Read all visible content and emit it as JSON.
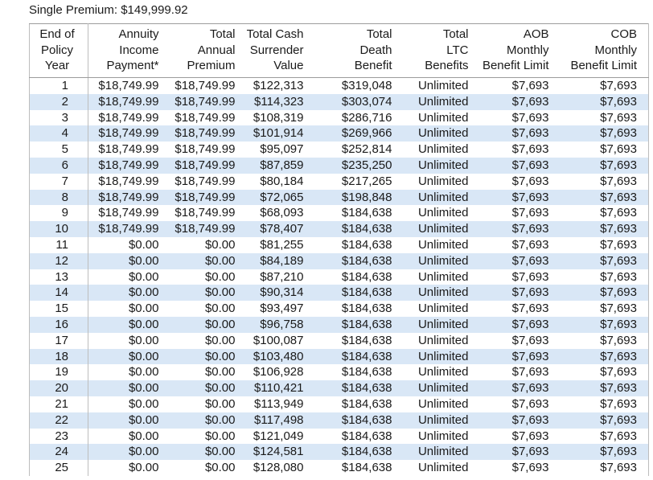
{
  "title": "Single Premium: $149,999.92",
  "colors": {
    "row_stripe": "#d9e7f6",
    "border_horizontal": "#9c9c9c",
    "border_vertical": "#bdbdbd",
    "text": "#1a1a1a"
  },
  "table": {
    "columns": [
      {
        "id": "end-of-policy-year",
        "label": "End of\nPolicy\nYear"
      },
      {
        "id": "annuity-income-payment",
        "label": "Annuity\nIncome\nPayment*"
      },
      {
        "id": "total-annual-premium",
        "label": "Total\nAnnual\nPremium"
      },
      {
        "id": "total-cash-surrender-value",
        "label": "Total Cash\nSurrender\nValue"
      },
      {
        "id": "total-death-benefit",
        "label": "Total\nDeath\nBenefit"
      },
      {
        "id": "total-ltc-benefits",
        "label": "Total\nLTC\nBenefits"
      },
      {
        "id": "aob-monthly-benefit-limit",
        "label": "AOB\nMonthly\nBenefit Limit"
      },
      {
        "id": "cob-monthly-benefit-limit",
        "label": "COB\nMonthly\nBenefit Limit"
      }
    ],
    "rows": [
      [
        "1",
        "$18,749.99",
        "$18,749.99",
        "$122,313",
        "$319,048",
        "Unlimited",
        "$7,693",
        "$7,693"
      ],
      [
        "2",
        "$18,749.99",
        "$18,749.99",
        "$114,323",
        "$303,074",
        "Unlimited",
        "$7,693",
        "$7,693"
      ],
      [
        "3",
        "$18,749.99",
        "$18,749.99",
        "$108,319",
        "$286,716",
        "Unlimited",
        "$7,693",
        "$7,693"
      ],
      [
        "4",
        "$18,749.99",
        "$18,749.99",
        "$101,914",
        "$269,966",
        "Unlimited",
        "$7,693",
        "$7,693"
      ],
      [
        "5",
        "$18,749.99",
        "$18,749.99",
        "$95,097",
        "$252,814",
        "Unlimited",
        "$7,693",
        "$7,693"
      ],
      [
        "6",
        "$18,749.99",
        "$18,749.99",
        "$87,859",
        "$235,250",
        "Unlimited",
        "$7,693",
        "$7,693"
      ],
      [
        "7",
        "$18,749.99",
        "$18,749.99",
        "$80,184",
        "$217,265",
        "Unlimited",
        "$7,693",
        "$7,693"
      ],
      [
        "8",
        "$18,749.99",
        "$18,749.99",
        "$72,065",
        "$198,848",
        "Unlimited",
        "$7,693",
        "$7,693"
      ],
      [
        "9",
        "$18,749.99",
        "$18,749.99",
        "$68,093",
        "$184,638",
        "Unlimited",
        "$7,693",
        "$7,693"
      ],
      [
        "10",
        "$18,749.99",
        "$18,749.99",
        "$78,407",
        "$184,638",
        "Unlimited",
        "$7,693",
        "$7,693"
      ],
      [
        "11",
        "$0.00",
        "$0.00",
        "$81,255",
        "$184,638",
        "Unlimited",
        "$7,693",
        "$7,693"
      ],
      [
        "12",
        "$0.00",
        "$0.00",
        "$84,189",
        "$184,638",
        "Unlimited",
        "$7,693",
        "$7,693"
      ],
      [
        "13",
        "$0.00",
        "$0.00",
        "$87,210",
        "$184,638",
        "Unlimited",
        "$7,693",
        "$7,693"
      ],
      [
        "14",
        "$0.00",
        "$0.00",
        "$90,314",
        "$184,638",
        "Unlimited",
        "$7,693",
        "$7,693"
      ],
      [
        "15",
        "$0.00",
        "$0.00",
        "$93,497",
        "$184,638",
        "Unlimited",
        "$7,693",
        "$7,693"
      ],
      [
        "16",
        "$0.00",
        "$0.00",
        "$96,758",
        "$184,638",
        "Unlimited",
        "$7,693",
        "$7,693"
      ],
      [
        "17",
        "$0.00",
        "$0.00",
        "$100,087",
        "$184,638",
        "Unlimited",
        "$7,693",
        "$7,693"
      ],
      [
        "18",
        "$0.00",
        "$0.00",
        "$103,480",
        "$184,638",
        "Unlimited",
        "$7,693",
        "$7,693"
      ],
      [
        "19",
        "$0.00",
        "$0.00",
        "$106,928",
        "$184,638",
        "Unlimited",
        "$7,693",
        "$7,693"
      ],
      [
        "20",
        "$0.00",
        "$0.00",
        "$110,421",
        "$184,638",
        "Unlimited",
        "$7,693",
        "$7,693"
      ],
      [
        "21",
        "$0.00",
        "$0.00",
        "$113,949",
        "$184,638",
        "Unlimited",
        "$7,693",
        "$7,693"
      ],
      [
        "22",
        "$0.00",
        "$0.00",
        "$117,498",
        "$184,638",
        "Unlimited",
        "$7,693",
        "$7,693"
      ],
      [
        "23",
        "$0.00",
        "$0.00",
        "$121,049",
        "$184,638",
        "Unlimited",
        "$7,693",
        "$7,693"
      ],
      [
        "24",
        "$0.00",
        "$0.00",
        "$124,581",
        "$184,638",
        "Unlimited",
        "$7,693",
        "$7,693"
      ],
      [
        "25",
        "$0.00",
        "$0.00",
        "$128,080",
        "$184,638",
        "Unlimited",
        "$7,693",
        "$7,693"
      ]
    ]
  }
}
